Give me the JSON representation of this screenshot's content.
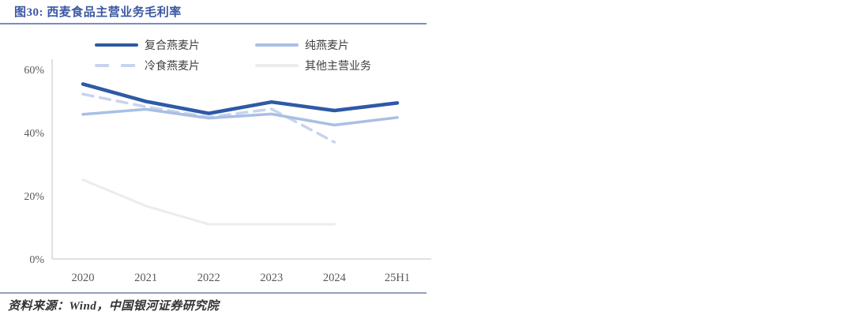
{
  "page": {
    "title": "图30: 西麦食品主营业务毛利率",
    "source_note": "资料来源：Wind，中国银河证券研究院"
  },
  "colors": {
    "title_text": "#3A57A3",
    "title_rule": "#7A8CC0",
    "footer_rule": "#95A0B6",
    "footer_text": "#333333",
    "axis_line": "#D6D6D6",
    "axis_text": "#595959",
    "legend_text": "#3F3F3F"
  },
  "chart_data": {
    "type": "line",
    "title": "西麦食品主营业务毛利率",
    "categories": [
      "2020",
      "2021",
      "2022",
      "2023",
      "2024",
      "25H1"
    ],
    "series": [
      {
        "name": "复合燕麦片",
        "color": "#2E59A6",
        "style": "solid",
        "values": [
          55.4,
          49.9,
          46.1,
          49.7,
          47.0,
          49.4
        ]
      },
      {
        "name": "纯燕麦片",
        "color": "#A9BFE5",
        "style": "solid",
        "values": [
          45.8,
          47.4,
          44.6,
          45.9,
          42.4,
          44.8
        ]
      },
      {
        "name": "冷食燕麦片",
        "color": "#C7D4EE",
        "style": "dashed",
        "values": [
          52.2,
          48.2,
          44.9,
          47.5,
          37.0,
          null
        ]
      },
      {
        "name": "其他主营业务",
        "color": "#ECECEC",
        "style": "solid",
        "values": [
          25.1,
          16.8,
          11.0,
          11.0,
          11.0,
          null
        ]
      }
    ],
    "y_ticks": [
      {
        "label": "60%",
        "value": 60
      },
      {
        "label": "40%",
        "value": 40
      },
      {
        "label": "20%",
        "value": 20
      },
      {
        "label": "0%",
        "value": 0
      }
    ],
    "ylim": [
      0,
      60
    ],
    "xlabel": "",
    "ylabel": "",
    "grid": false,
    "legend_position": "top"
  }
}
